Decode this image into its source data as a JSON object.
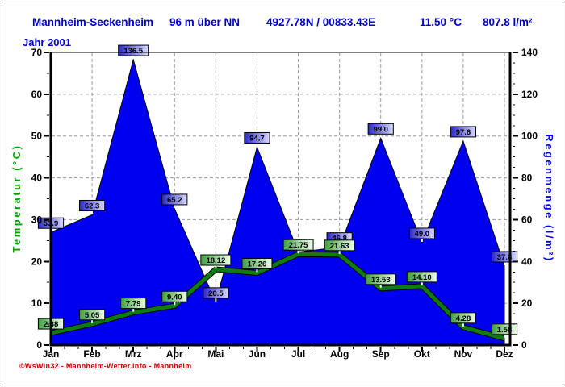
{
  "header": {
    "station": "Mannheim-Seckenheim",
    "elevation": "96 m über NN",
    "coordinates": "4927.78N / 00833.43E",
    "mean_temperature": "11.50 °C",
    "total_rainfall": "807.8 l/m²"
  },
  "subtitle": "Jahr 2001",
  "footer": {
    "credit": "©WsWin32 - Mannheim-Wetter.info - Mannheim"
  },
  "chart_data": {
    "type": "area+line combo",
    "title": "Jahr 2001",
    "categories": [
      "Jan",
      "Feb",
      "Mrz",
      "Apr",
      "Mai",
      "Jun",
      "Jul",
      "Aug",
      "Sep",
      "Okt",
      "Nov",
      "Dez"
    ],
    "series": [
      {
        "name": "Regenmenge",
        "type": "area",
        "axis": "right",
        "color": "#0000f0",
        "values": [
          53.9,
          62.3,
          136.5,
          65.2,
          20.5,
          94.7,
          44.5,
          46.8,
          99.0,
          49.0,
          97.6,
          37.8
        ],
        "labels": [
          "53.9",
          "62.3",
          "136.5",
          "65.2",
          "20.5",
          "94.7",
          null,
          "46.8",
          "99.0",
          "49.0",
          "97.6",
          "37.8"
        ]
      },
      {
        "name": "Temperatur",
        "type": "line",
        "axis": "left",
        "color": "#0e7c0e",
        "values": [
          2.88,
          5.05,
          7.79,
          9.4,
          18.12,
          17.26,
          21.75,
          21.63,
          13.53,
          14.1,
          4.28,
          1.58
        ],
        "labels": [
          "2.88",
          "5.05",
          "7.79",
          "9.40",
          "18.12",
          "17.26",
          "21.75",
          "21.63",
          "13.53",
          "14.10",
          "4.28",
          "1.58"
        ]
      }
    ],
    "left_axis": {
      "label": "Temperatur  (°C)",
      "min": 0,
      "max": 70,
      "major_step": 10,
      "minor_step": 5,
      "color": "#00a000"
    },
    "right_axis": {
      "label": "Regenmenge  (l/m²)",
      "min": 0,
      "max": 140,
      "major_step": 20,
      "minor_step": 5,
      "color": "#0000e0"
    },
    "grid": {
      "horizontal": true,
      "vertical": true,
      "style": "dashed",
      "color": "#999999"
    },
    "label_colors": {
      "rain_box_dark": "#2929c9",
      "rain_box_light": "#d9d9ff",
      "temp_box_dark": "#3e9e3e",
      "temp_box_light": "#efffef"
    }
  }
}
